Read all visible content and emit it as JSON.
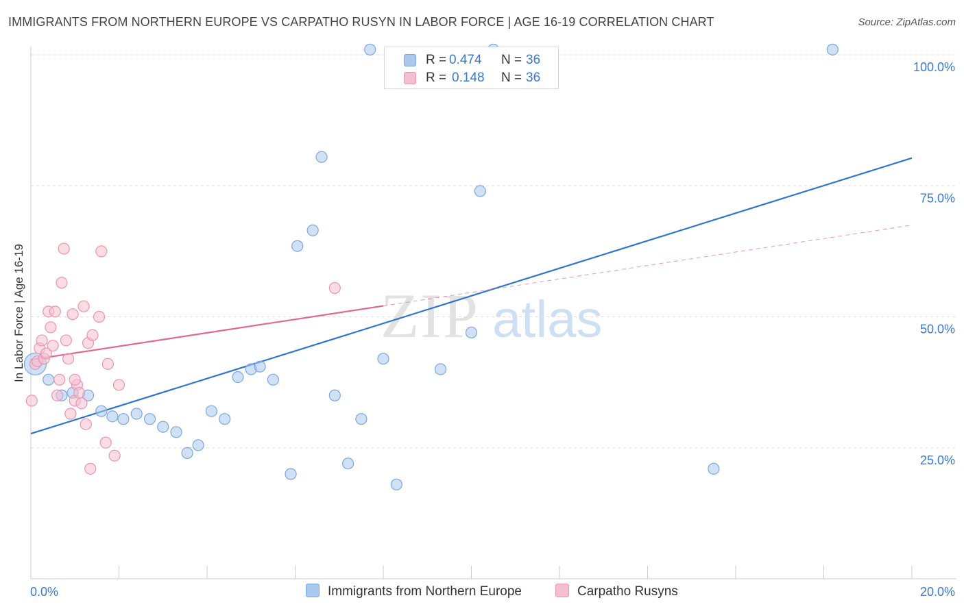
{
  "title": "IMMIGRANTS FROM NORTHERN EUROPE VS CARPATHO RUSYN IN LABOR FORCE | AGE 16-19 CORRELATION CHART",
  "source": "Source: ZipAtlas.com",
  "watermark": {
    "zip": "ZIP",
    "atlas": "atlas"
  },
  "legend": {
    "series1": {
      "r_label": "R =",
      "r_value": "0.474",
      "n_label": "N =",
      "n_value": "36"
    },
    "series2": {
      "r_label": "R =",
      "r_value": "0.148",
      "n_label": "N =",
      "n_value": "36"
    }
  },
  "colors": {
    "blue_fill": "#aac8ee",
    "blue_stroke": "#7aa7e0",
    "blue_line": "#2e74d0",
    "pink_fill": "#f6bfd0",
    "pink_stroke": "#ec93b0",
    "pink_line": "#e4668f",
    "axis_text": "#3a78d0",
    "grid": "#dddddd"
  },
  "chart_data": {
    "type": "scatter",
    "xlabel": "",
    "ylabel": "In Labor Force | Age 16-19",
    "xlim": [
      0,
      20
    ],
    "ylim": [
      0,
      105
    ],
    "x_tick_labels": [
      "0.0%",
      "20.0%"
    ],
    "y_ticks": [
      25,
      50,
      75,
      100
    ],
    "y_tick_labels": [
      "25.0%",
      "50.0%",
      "75.0%",
      "100.0%"
    ],
    "grid": true,
    "series": [
      {
        "name": "Immigrants from Northern Europe",
        "color": "blue",
        "points": [
          {
            "x": 0.1,
            "y": 41,
            "big": true
          },
          {
            "x": 0.4,
            "y": 38
          },
          {
            "x": 0.7,
            "y": 35
          },
          {
            "x": 0.95,
            "y": 35.5
          },
          {
            "x": 1.3,
            "y": 35
          },
          {
            "x": 1.6,
            "y": 32
          },
          {
            "x": 1.85,
            "y": 31
          },
          {
            "x": 2.1,
            "y": 30.5
          },
          {
            "x": 2.4,
            "y": 31.5
          },
          {
            "x": 2.7,
            "y": 30.5
          },
          {
            "x": 3.0,
            "y": 29
          },
          {
            "x": 3.3,
            "y": 28
          },
          {
            "x": 3.55,
            "y": 24
          },
          {
            "x": 3.8,
            "y": 25.5
          },
          {
            "x": 4.1,
            "y": 32
          },
          {
            "x": 4.4,
            "y": 30.5
          },
          {
            "x": 4.7,
            "y": 38.5
          },
          {
            "x": 5.0,
            "y": 40
          },
          {
            "x": 5.2,
            "y": 40.5
          },
          {
            "x": 5.5,
            "y": 38
          },
          {
            "x": 5.9,
            "y": 20
          },
          {
            "x": 6.05,
            "y": 63.5
          },
          {
            "x": 6.4,
            "y": 66.5
          },
          {
            "x": 6.6,
            "y": 80.5
          },
          {
            "x": 6.9,
            "y": 35
          },
          {
            "x": 7.2,
            "y": 22
          },
          {
            "x": 7.5,
            "y": 30.5
          },
          {
            "x": 7.7,
            "y": 101
          },
          {
            "x": 8.0,
            "y": 42
          },
          {
            "x": 8.3,
            "y": 18
          },
          {
            "x": 9.3,
            "y": 40
          },
          {
            "x": 10.0,
            "y": 47
          },
          {
            "x": 10.2,
            "y": 74
          },
          {
            "x": 10.5,
            "y": 101
          },
          {
            "x": 15.5,
            "y": 21
          },
          {
            "x": 18.2,
            "y": 101
          }
        ],
        "trend": {
          "x": [
            0,
            20
          ],
          "y": [
            27.7,
            80.3
          ],
          "dashed_from": null
        }
      },
      {
        "name": "Carpatho Rusyns",
        "color": "pink",
        "points": [
          {
            "x": 0.02,
            "y": 34
          },
          {
            "x": 0.1,
            "y": 41
          },
          {
            "x": 0.15,
            "y": 41.5
          },
          {
            "x": 0.2,
            "y": 44
          },
          {
            "x": 0.25,
            "y": 45.5
          },
          {
            "x": 0.3,
            "y": 42
          },
          {
            "x": 0.35,
            "y": 43
          },
          {
            "x": 0.4,
            "y": 51
          },
          {
            "x": 0.45,
            "y": 48
          },
          {
            "x": 0.5,
            "y": 44.5
          },
          {
            "x": 0.55,
            "y": 51
          },
          {
            "x": 0.6,
            "y": 35
          },
          {
            "x": 0.65,
            "y": 38
          },
          {
            "x": 0.7,
            "y": 56.5
          },
          {
            "x": 0.75,
            "y": 63
          },
          {
            "x": 0.8,
            "y": 45.5
          },
          {
            "x": 0.85,
            "y": 42
          },
          {
            "x": 0.9,
            "y": 31.5
          },
          {
            "x": 0.95,
            "y": 50.5
          },
          {
            "x": 1.0,
            "y": 34
          },
          {
            "x": 1.05,
            "y": 37
          },
          {
            "x": 1.1,
            "y": 35.5
          },
          {
            "x": 1.15,
            "y": 33.5
          },
          {
            "x": 1.2,
            "y": 52
          },
          {
            "x": 1.25,
            "y": 29.5
          },
          {
            "x": 1.3,
            "y": 45
          },
          {
            "x": 1.35,
            "y": 21
          },
          {
            "x": 1.4,
            "y": 46.5
          },
          {
            "x": 1.55,
            "y": 50
          },
          {
            "x": 1.6,
            "y": 62.5
          },
          {
            "x": 1.7,
            "y": 26
          },
          {
            "x": 1.75,
            "y": 41
          },
          {
            "x": 1.9,
            "y": 23.5
          },
          {
            "x": 2.0,
            "y": 37
          },
          {
            "x": 1.0,
            "y": 38
          },
          {
            "x": 6.9,
            "y": 55.5
          }
        ],
        "trend": {
          "x": [
            0,
            20
          ],
          "y": [
            41.8,
            67.5
          ],
          "dashed_from": 8.0
        }
      }
    ]
  },
  "bottom_legend": {
    "item1": "Immigrants from Northern Europe",
    "item2": "Carpatho Rusyns"
  }
}
